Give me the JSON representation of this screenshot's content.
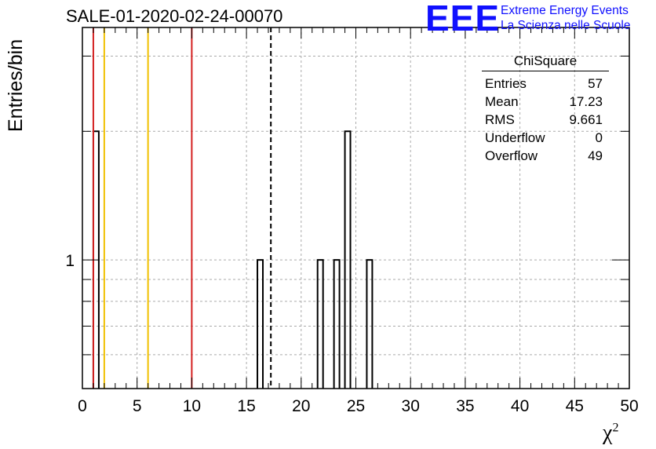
{
  "title": "SALE-01-2020-02-24-00070",
  "logo": {
    "mark": "EEE",
    "line1": "Extreme Energy Events",
    "line2": "La Scienza nelle Scuole",
    "color": "#1010ff"
  },
  "stats_box": {
    "title": "ChiSquare",
    "rows": [
      {
        "label": "Entries",
        "value": "57"
      },
      {
        "label": "Mean",
        "value": "17.23"
      },
      {
        "label": "RMS",
        "value": "9.661"
      },
      {
        "label": "Underflow",
        "value": "0"
      },
      {
        "label": "Overflow",
        "value": "49"
      }
    ]
  },
  "chart_data": {
    "type": "bar",
    "xlabel": "χ",
    "xlabel_sup": "2",
    "ylabel": "Entries/bin",
    "xlim": [
      0,
      50
    ],
    "ylim": [
      0.5,
      3.5
    ],
    "y_scale": "log",
    "grid": true,
    "x_ticks": [
      0,
      5,
      10,
      15,
      20,
      25,
      30,
      35,
      40,
      45,
      50
    ],
    "y_tick_labels": [
      {
        "value": 1,
        "label": "1"
      }
    ],
    "bin_width": 0.5,
    "bins": [
      {
        "x": 1.0,
        "count": 2
      },
      {
        "x": 16.0,
        "count": 1
      },
      {
        "x": 21.5,
        "count": 1
      },
      {
        "x": 23.0,
        "count": 1
      },
      {
        "x": 24.0,
        "count": 2
      },
      {
        "x": 26.0,
        "count": 1
      }
    ],
    "vertical_lines": [
      {
        "x": 1.0,
        "color": "#d42020",
        "style": "solid"
      },
      {
        "x": 2.0,
        "color": "#f0c000",
        "style": "solid"
      },
      {
        "x": 6.0,
        "color": "#f0c000",
        "style": "solid"
      },
      {
        "x": 10.0,
        "color": "#d42020",
        "style": "solid"
      },
      {
        "x": 17.23,
        "color": "#000000",
        "style": "dashed"
      }
    ]
  }
}
